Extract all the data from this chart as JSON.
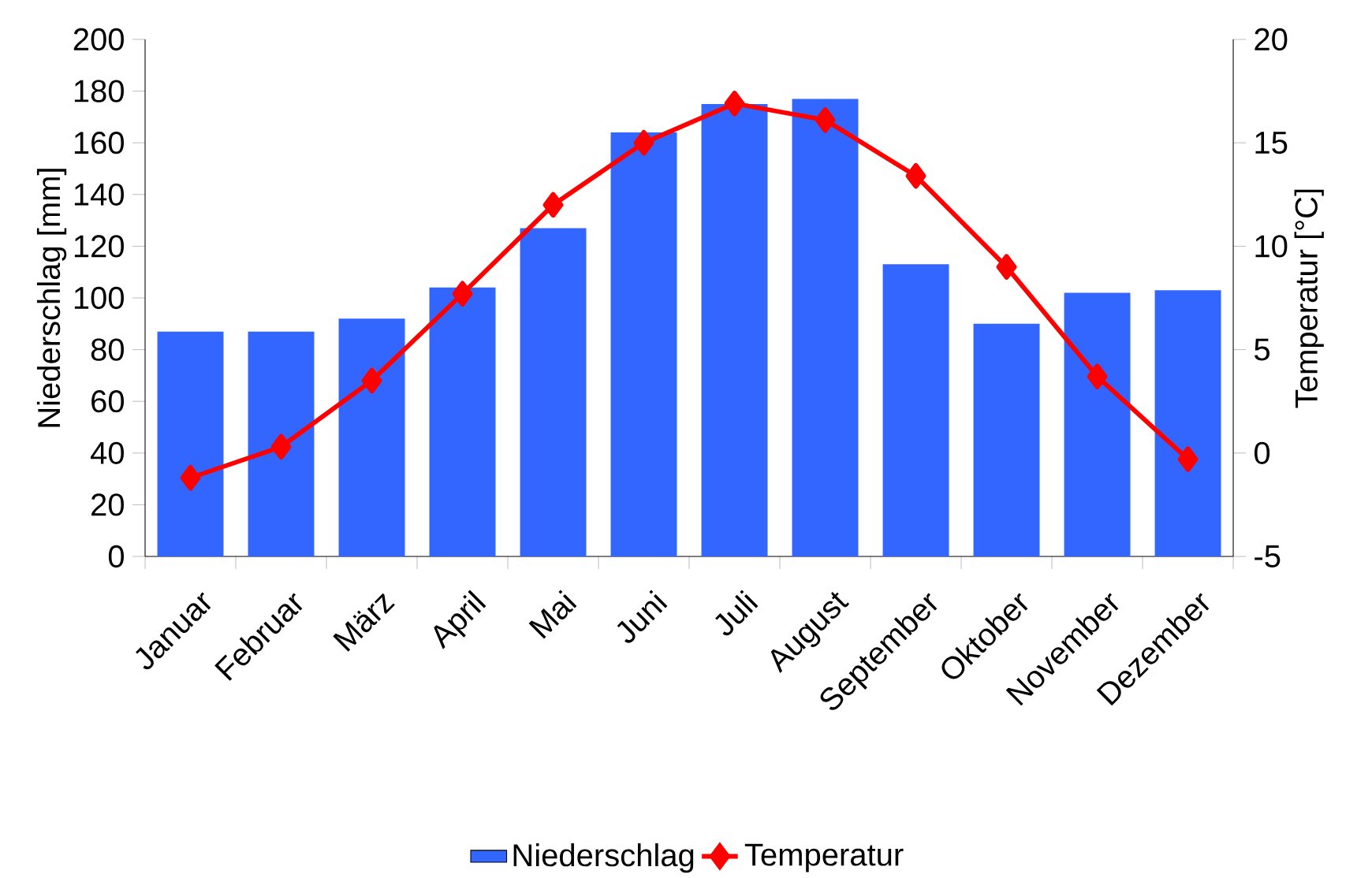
{
  "chart_data": {
    "type": "bar",
    "categories": [
      "Januar",
      "Februar",
      "März",
      "April",
      "Mai",
      "Juni",
      "Juli",
      "August",
      "September",
      "Oktober",
      "November",
      "Dezember"
    ],
    "series": [
      {
        "name": "Niederschlag",
        "color": "#3366ff",
        "values": [
          87,
          87,
          92,
          104,
          127,
          164,
          175,
          177,
          113,
          90,
          102,
          103
        ]
      },
      {
        "name": "Temperatur",
        "type": "line",
        "axis": "y2",
        "color": "#ff0000",
        "values": [
          -1.2,
          0.3,
          3.5,
          7.7,
          12.0,
          15.0,
          16.9,
          16.1,
          13.4,
          9.0,
          3.7,
          -0.3
        ]
      }
    ],
    "ylabel": "Niederschlag [mm]",
    "y2label": "Temperatur [°C]",
    "ylim": [
      0,
      200
    ],
    "yticks": [
      0,
      20,
      40,
      60,
      80,
      100,
      120,
      140,
      160,
      180,
      200
    ],
    "y2lim": [
      -5,
      20
    ],
    "y2ticks": [
      -5,
      0,
      5,
      10,
      15,
      20
    ],
    "marker": "diamond",
    "legend": "bottom",
    "grid": false
  }
}
